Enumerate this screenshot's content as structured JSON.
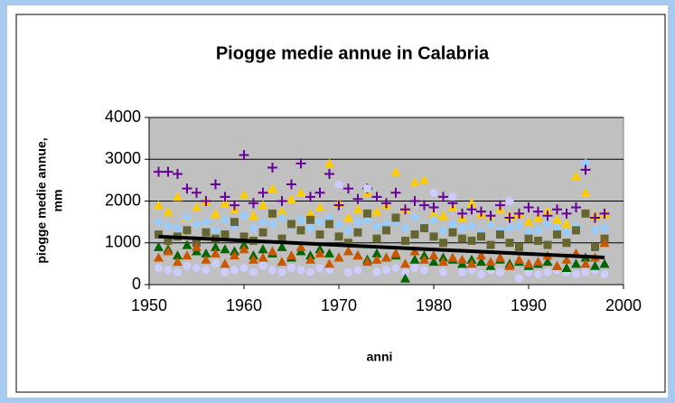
{
  "chart_data": {
    "type": "scatter",
    "title": "Piogge medie annue in Calabria",
    "xlabel": "anni",
    "ylabel": [
      "piogge medie annue,",
      "mm"
    ],
    "xlim": [
      1950,
      2000
    ],
    "xticks": [
      1950,
      1960,
      1970,
      1980,
      1990,
      2000
    ],
    "ylim": [
      0,
      4000
    ],
    "yticks": [
      0,
      1000,
      2000,
      3000,
      4000
    ],
    "grid": true,
    "x": [
      1951,
      1952,
      1953,
      1954,
      1955,
      1956,
      1957,
      1958,
      1959,
      1960,
      1961,
      1962,
      1963,
      1964,
      1965,
      1966,
      1967,
      1968,
      1969,
      1970,
      1971,
      1972,
      1973,
      1974,
      1975,
      1976,
      1977,
      1978,
      1979,
      1980,
      1981,
      1982,
      1983,
      1984,
      1985,
      1986,
      1987,
      1988,
      1989,
      1990,
      1991,
      1992,
      1993,
      1994,
      1995,
      1996,
      1997,
      1998
    ],
    "series": [
      {
        "color": "#ffcc00",
        "marker": "triangle",
        "values": [
          1900,
          1750,
          2100,
          1600,
          1850,
          2000,
          1700,
          1950,
          1800,
          2150,
          1650,
          1900,
          2300,
          1750,
          2050,
          2200,
          1700,
          1850,
          2900,
          1950,
          1600,
          1800,
          2200,
          1750,
          1900,
          2700,
          1800,
          2450,
          2500,
          1700,
          1650,
          1850,
          1600,
          1950,
          1700,
          1550,
          1800,
          1650,
          1700,
          1500,
          1600,
          1750,
          1550,
          1450,
          2600,
          2200,
          1650,
          1700
        ]
      },
      {
        "color": "#99ccff",
        "marker": "diamond",
        "values": [
          1500,
          1400,
          1350,
          1600,
          1450,
          1500,
          1300,
          1550,
          1400,
          1650,
          1350,
          1500,
          1450,
          1600,
          1400,
          1550,
          1350,
          1500,
          1600,
          1450,
          1300,
          1500,
          1550,
          1400,
          1450,
          1500,
          1350,
          1600,
          1400,
          1550,
          1300,
          1450,
          1350,
          1400,
          1250,
          1450,
          1300,
          1350,
          1400,
          1250,
          1300,
          1450,
          1350,
          1250,
          1400,
          2900,
          1300,
          1350
        ]
      },
      {
        "color": "#660099",
        "marker": "plus",
        "values": [
          2700,
          2700,
          2650,
          2300,
          2200,
          2000,
          2400,
          2100,
          1900,
          3100,
          1950,
          2200,
          2800,
          2000,
          2400,
          2900,
          2100,
          2200,
          2650,
          1900,
          2300,
          2050,
          2300,
          2100,
          1950,
          2200,
          1800,
          2000,
          1900,
          1850,
          2100,
          1950,
          1700,
          1800,
          1750,
          1650,
          1900,
          1600,
          1700,
          1850,
          1750,
          1650,
          1800,
          1700,
          1850,
          2750,
          1600,
          1700
        ]
      },
      {
        "color": "#ccccff",
        "marker": "circle",
        "values": [
          400,
          350,
          300,
          450,
          400,
          350,
          500,
          300,
          350,
          400,
          300,
          450,
          350,
          300,
          400,
          350,
          300,
          400,
          350,
          2400,
          300,
          350,
          2300,
          300,
          350,
          400,
          300,
          400,
          350,
          2200,
          300,
          2100,
          300,
          350,
          250,
          350,
          300,
          2000,
          150,
          300,
          250,
          300,
          350,
          300,
          250,
          300,
          350,
          250
        ]
      },
      {
        "color": "#666633",
        "marker": "square",
        "values": [
          1200,
          1050,
          1150,
          1300,
          1000,
          1250,
          1100,
          1200,
          1500,
          1150,
          1050,
          1250,
          1700,
          1100,
          1450,
          1300,
          1550,
          1200,
          1450,
          1150,
          1000,
          1250,
          1700,
          1100,
          1300,
          1600,
          1050,
          1200,
          1350,
          1150,
          1000,
          1250,
          1100,
          1050,
          1150,
          950,
          1200,
          1000,
          900,
          1100,
          1050,
          950,
          1200,
          1000,
          1300,
          1700,
          900,
          1100
        ]
      },
      {
        "color": "#006600",
        "marker": "triangle",
        "values": [
          900,
          850,
          700,
          950,
          800,
          750,
          900,
          850,
          800,
          950,
          700,
          850,
          750,
          900,
          650,
          800,
          700,
          850,
          750,
          650,
          800,
          700,
          600,
          750,
          650,
          700,
          150,
          600,
          700,
          550,
          650,
          600,
          500,
          600,
          550,
          450,
          600,
          500,
          550,
          450,
          500,
          550,
          450,
          400,
          500,
          650,
          450,
          500
        ]
      },
      {
        "color": "#cc5500",
        "marker": "triangle",
        "values": [
          650,
          800,
          550,
          700,
          900,
          600,
          750,
          500,
          700,
          850,
          600,
          650,
          800,
          550,
          700,
          900,
          600,
          750,
          500,
          650,
          800,
          700,
          550,
          600,
          650,
          750,
          500,
          800,
          600,
          700,
          550,
          650,
          600,
          500,
          700,
          550,
          650,
          450,
          600,
          500,
          550,
          700,
          450,
          600,
          750,
          500,
          650,
          1000
        ]
      }
    ],
    "trend": {
      "x": [
        1951,
        1998
      ],
      "values": [
        1150,
        650
      ],
      "color": "#000000"
    }
  }
}
